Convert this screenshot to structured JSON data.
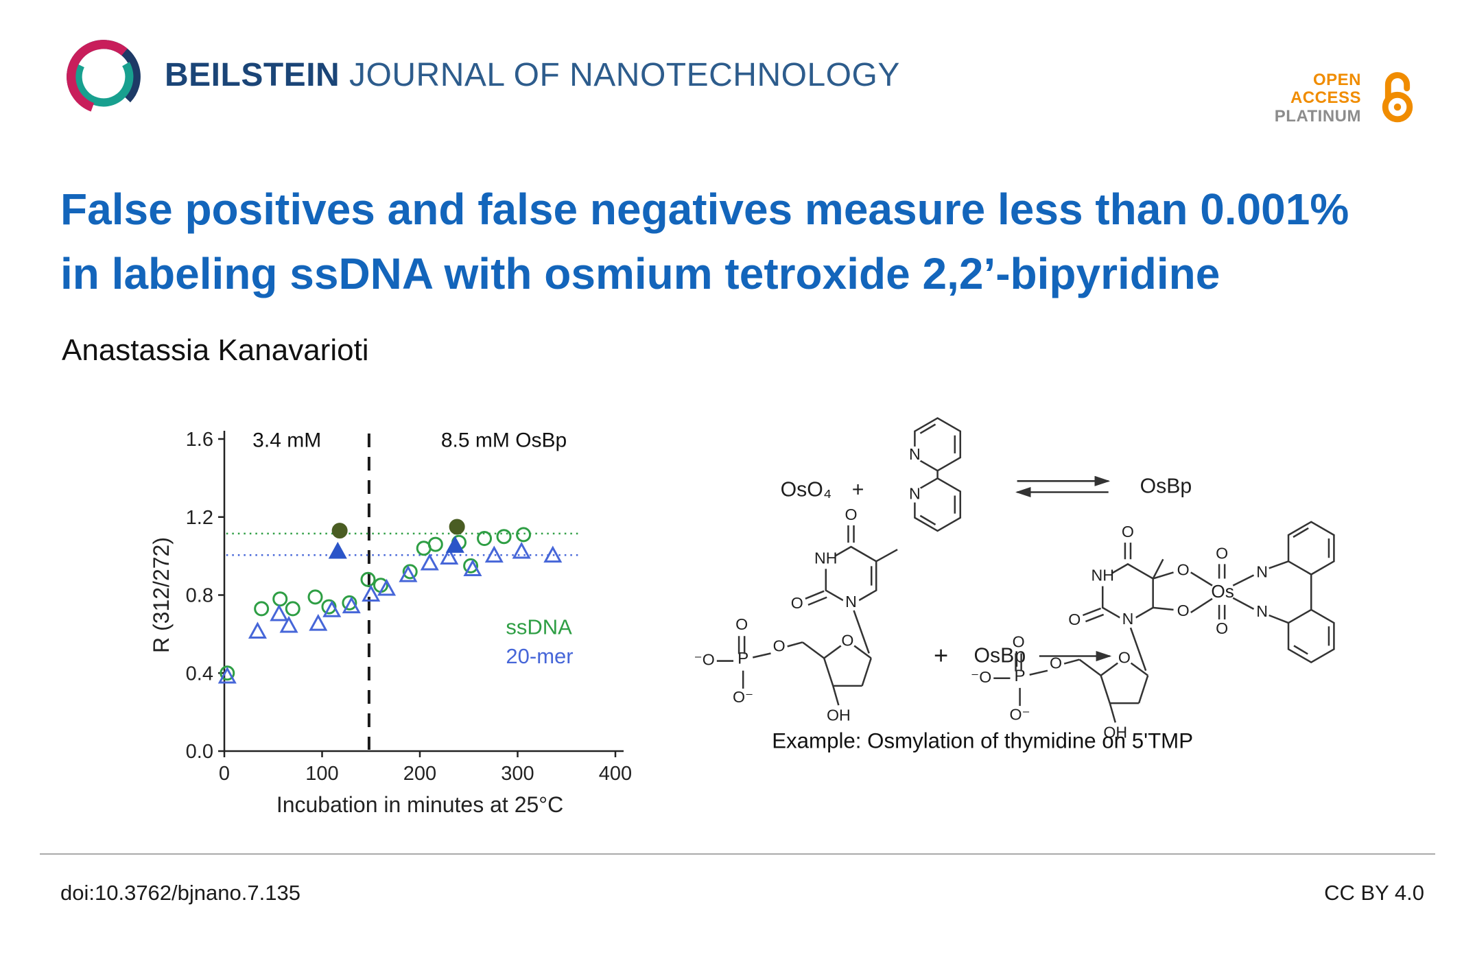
{
  "header": {
    "brand": "BEILSTEIN",
    "journal": "JOURNAL OF NANOTECHNOLOGY",
    "open_access": {
      "open": "OPEN",
      "access": "ACCESS",
      "platinum": "PLATINUM"
    }
  },
  "article": {
    "title_line1": "False positives and false negatives measure less than 0.001%",
    "title_line2": "in labeling ssDNA with osmium tetroxide 2,2’-bipyridine",
    "author": "Anastassia Kanavarioti"
  },
  "chart_data": {
    "type": "scatter",
    "xlabel": "Incubation in minutes at 25°C",
    "ylabel": "R (312/272)",
    "xlim": [
      0,
      400
    ],
    "ylim": [
      0,
      1.6
    ],
    "xticks": [
      0,
      100,
      200,
      300,
      400
    ],
    "yticks": [
      0,
      0.4,
      0.8,
      1.2,
      1.6
    ],
    "grid": false,
    "vline": {
      "x": 148,
      "color": "#1a1a1a",
      "dash": "20 14"
    },
    "region_labels": [
      {
        "text": "3.4 mM",
        "x": 64,
        "y": 1.56
      },
      {
        "text": "8.5 mM OsBp",
        "x": 286,
        "y": 1.56
      }
    ],
    "trend_lines": [
      {
        "y": 1.115,
        "x1": 2,
        "x2": 364,
        "color": "#2e9e44"
      },
      {
        "y": 1.005,
        "x1": 2,
        "x2": 364,
        "color": "#4666d8"
      }
    ],
    "series": [
      {
        "name": "ssDNA",
        "marker": "circle",
        "filled": false,
        "color": "#2e9e44",
        "points": [
          [
            3,
            0.4
          ],
          [
            38,
            0.73
          ],
          [
            57,
            0.78
          ],
          [
            70,
            0.73
          ],
          [
            93,
            0.79
          ],
          [
            107,
            0.74
          ],
          [
            128,
            0.76
          ],
          [
            147,
            0.88
          ],
          [
            160,
            0.85
          ],
          [
            190,
            0.92
          ],
          [
            204,
            1.04
          ],
          [
            216,
            1.06
          ],
          [
            240,
            1.07
          ],
          [
            252,
            0.95
          ],
          [
            266,
            1.09
          ],
          [
            286,
            1.1
          ],
          [
            306,
            1.11
          ]
        ]
      },
      {
        "name": "ssDNA emphasized",
        "marker": "circle",
        "filled": true,
        "color": "#4a5d23",
        "points": [
          [
            118,
            1.13
          ],
          [
            238,
            1.15
          ]
        ]
      },
      {
        "name": "20-mer",
        "marker": "triangle",
        "filled": false,
        "color": "#4666d8",
        "points": [
          [
            3,
            0.38
          ],
          [
            34,
            0.61
          ],
          [
            56,
            0.7
          ],
          [
            66,
            0.64
          ],
          [
            96,
            0.65
          ],
          [
            110,
            0.72
          ],
          [
            130,
            0.74
          ],
          [
            150,
            0.8
          ],
          [
            166,
            0.83
          ],
          [
            188,
            0.9
          ],
          [
            210,
            0.96
          ],
          [
            230,
            0.99
          ],
          [
            254,
            0.93
          ],
          [
            276,
            1.0
          ],
          [
            304,
            1.02
          ],
          [
            336,
            1.0
          ]
        ]
      },
      {
        "name": "20-mer emphasized",
        "marker": "triangle",
        "filled": true,
        "color": "#2b55c8",
        "points": [
          [
            116,
            1.02
          ],
          [
            236,
            1.05
          ]
        ]
      }
    ],
    "legend": [
      {
        "label": "ssDNA",
        "color": "#2e9e44",
        "x": 288,
        "y": 0.6
      },
      {
        "label": "20-mer",
        "color": "#4666d8",
        "x": 288,
        "y": 0.45
      }
    ]
  },
  "scheme": {
    "oso4": "OsO₄",
    "plus": "+",
    "osbp": "OsBp",
    "caption": "Example: Osmylation of thymidine on 5'TMP",
    "atom_N": "N",
    "atom_NH": "NH",
    "atom_O": "O",
    "atom_OH": "OH",
    "atom_P": "P",
    "atom_Os": "Os",
    "atom_O_minus": "O⁻",
    "atom_minus_O": "⁻O"
  },
  "footer": {
    "doi": "doi:10.3762/bjnano.7.135",
    "license": "CC BY 4.0"
  },
  "colors": {
    "title_blue": "#1365bb",
    "brand_navy": "#1b4577",
    "brand_blue": "#2d5c8c",
    "accent_orange": "#f08c00",
    "platinum_gray": "#8c8c8c"
  }
}
